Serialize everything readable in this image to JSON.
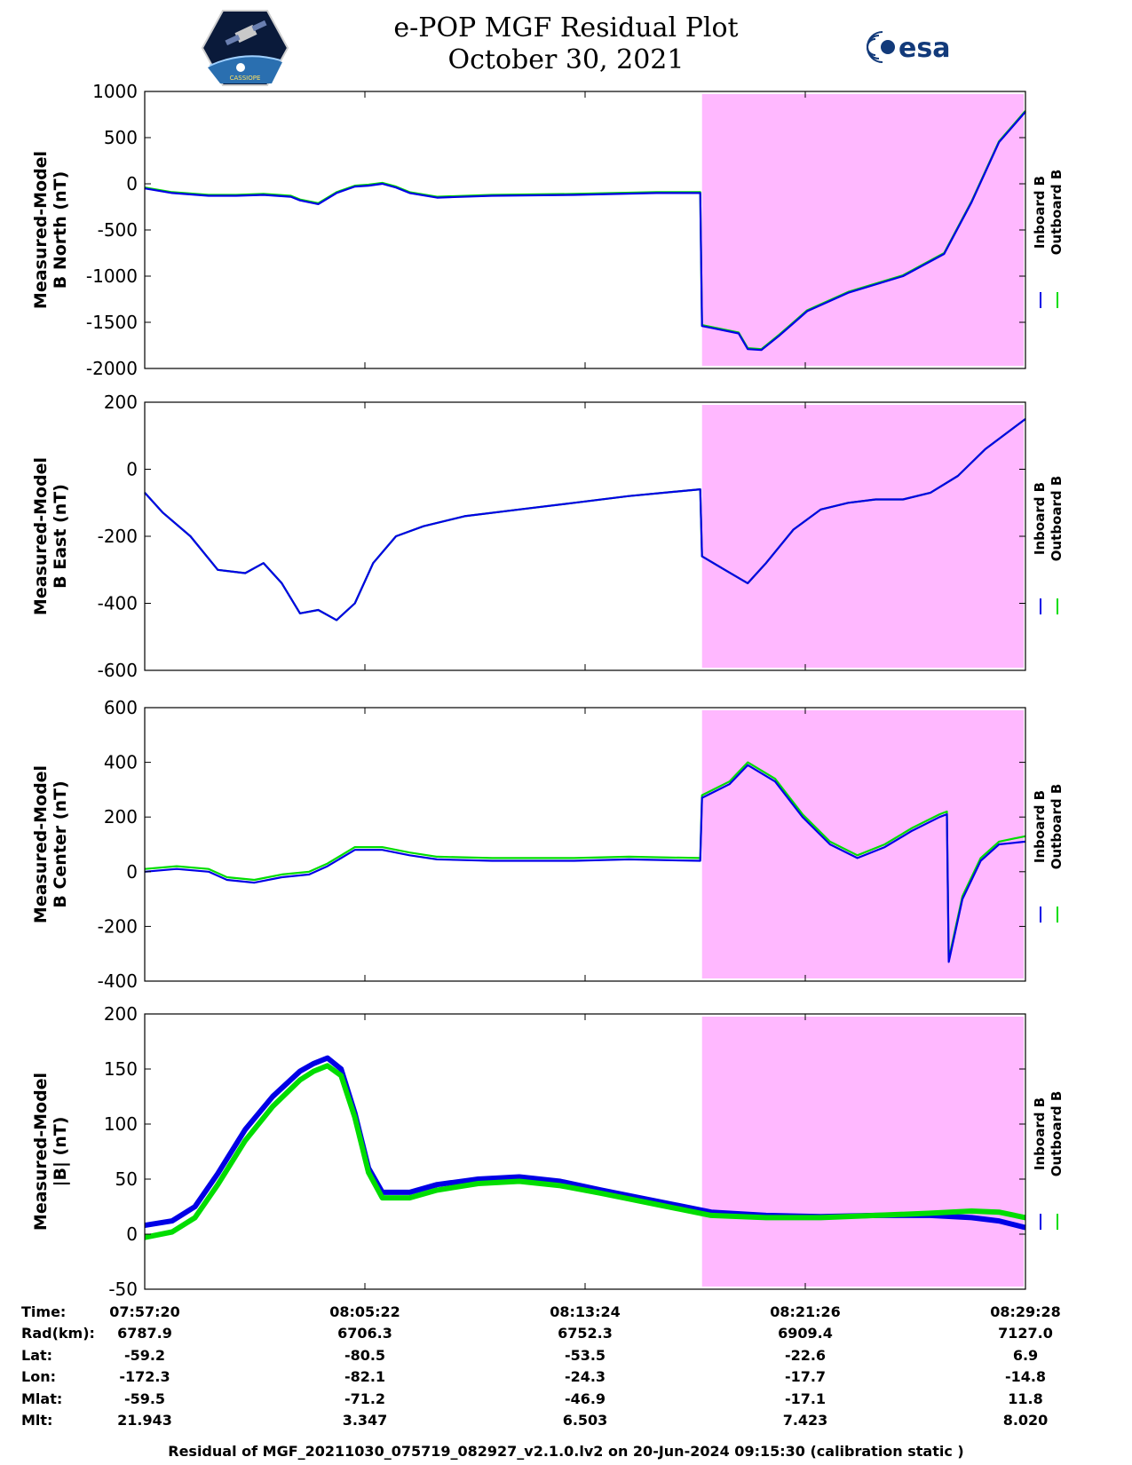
{
  "header": {
    "title_line1": "e-POP MGF Residual Plot",
    "title_line2": "October 30, 2021",
    "left_logo": "cassiope-mission-logo",
    "left_logo_text": "CASSIOPE",
    "right_logo": "esa-logo",
    "right_logo_text": "esa"
  },
  "colors": {
    "inboard": "#0000e6",
    "outboard": "#00dd00",
    "highlight": "#ffb8ff"
  },
  "chart_data": [
    {
      "type": "line",
      "ylabel_line1": "Measured-Model",
      "ylabel_line2": "B North (nT)",
      "ylim": [
        -2000,
        1000
      ],
      "yticks": [
        -2000,
        -1500,
        -1000,
        -500,
        0,
        500,
        1000
      ],
      "xlim": [
        "07:57:20",
        "08:29:28"
      ],
      "highlight_x": [
        "08:17:40",
        "08:29:28"
      ],
      "legend": [
        "Inboard B",
        "Outboard B"
      ],
      "legend_placement": "right",
      "series": [
        {
          "name": "Inboard B",
          "x": [
            "07:57:20",
            "07:58:20",
            "07:59:40",
            "08:00:40",
            "08:01:40",
            "08:02:40",
            "08:03:00",
            "08:03:40",
            "08:04:20",
            "08:05:00",
            "08:05:30",
            "08:06:00",
            "08:06:30",
            "08:07:00",
            "08:08:00",
            "08:10:00",
            "08:13:00",
            "08:16:00",
            "08:17:36",
            "08:17:40",
            "08:18:00",
            "08:19:00",
            "08:19:20",
            "08:19:50",
            "08:20:30",
            "08:21:30",
            "08:23:00",
            "08:25:00",
            "08:26:30",
            "08:27:30",
            "08:28:30",
            "08:29:28"
          ],
          "values": [
            -50,
            -100,
            -130,
            -130,
            -120,
            -140,
            -180,
            -220,
            -100,
            -30,
            -20,
            0,
            -40,
            -100,
            -150,
            -130,
            -120,
            -100,
            -100,
            -1540,
            -1560,
            -1620,
            -1790,
            -1800,
            -1640,
            -1380,
            -1180,
            -1000,
            -760,
            -200,
            450,
            780
          ]
        },
        {
          "name": "Outboard B",
          "x": [
            "07:57:20",
            "07:58:20",
            "07:59:40",
            "08:00:40",
            "08:01:40",
            "08:02:40",
            "08:03:00",
            "08:03:40",
            "08:04:20",
            "08:05:00",
            "08:05:30",
            "08:06:00",
            "08:06:30",
            "08:07:00",
            "08:08:00",
            "08:10:00",
            "08:13:00",
            "08:16:00",
            "08:17:36",
            "08:17:40",
            "08:18:00",
            "08:19:00",
            "08:19:20",
            "08:19:50",
            "08:20:30",
            "08:21:30",
            "08:23:00",
            "08:25:00",
            "08:26:30",
            "08:27:30",
            "08:28:30",
            "08:29:28"
          ],
          "values": [
            -40,
            -90,
            -120,
            -120,
            -110,
            -130,
            -170,
            -210,
            -90,
            -20,
            -10,
            10,
            -30,
            -90,
            -140,
            -120,
            -110,
            -90,
            -90,
            -1530,
            -1550,
            -1610,
            -1780,
            -1790,
            -1630,
            -1370,
            -1170,
            -990,
            -750,
            -190,
            460,
            790
          ]
        }
      ]
    },
    {
      "type": "line",
      "ylabel_line1": "Measured-Model",
      "ylabel_line2": "B East (nT)",
      "ylim": [
        -600,
        200
      ],
      "yticks": [
        -600,
        -400,
        -200,
        0,
        200
      ],
      "xlim": [
        "07:57:20",
        "08:29:28"
      ],
      "highlight_x": [
        "08:17:40",
        "08:29:28"
      ],
      "legend": [
        "Inboard B",
        "Outboard B"
      ],
      "legend_placement": "right",
      "series": [
        {
          "name": "Inboard B",
          "x": [
            "07:57:20",
            "07:58:00",
            "07:59:00",
            "08:00:00",
            "08:01:00",
            "08:01:40",
            "08:02:20",
            "08:03:00",
            "08:03:40",
            "08:04:20",
            "08:05:00",
            "08:05:40",
            "08:06:30",
            "08:07:30",
            "08:09:00",
            "08:11:00",
            "08:13:00",
            "08:15:00",
            "08:17:36",
            "08:17:40",
            "08:18:30",
            "08:19:20",
            "08:20:00",
            "08:21:00",
            "08:22:00",
            "08:23:00",
            "08:24:00",
            "08:25:00",
            "08:26:00",
            "08:27:00",
            "08:28:00",
            "08:29:28"
          ],
          "values": [
            -70,
            -130,
            -200,
            -300,
            -310,
            -280,
            -340,
            -430,
            -420,
            -450,
            -400,
            -280,
            -200,
            -170,
            -140,
            -120,
            -100,
            -80,
            -60,
            -260,
            -300,
            -340,
            -280,
            -180,
            -120,
            -100,
            -90,
            -90,
            -70,
            -20,
            60,
            150
          ]
        },
        {
          "name": "Outboard B",
          "x": [
            "07:57:20",
            "07:58:00",
            "07:59:00",
            "08:00:00",
            "08:01:00",
            "08:01:40",
            "08:02:20",
            "08:03:00",
            "08:03:40",
            "08:04:20",
            "08:05:00",
            "08:05:40",
            "08:06:30",
            "08:07:30",
            "08:09:00",
            "08:11:00",
            "08:13:00",
            "08:15:00",
            "08:17:36",
            "08:17:40",
            "08:18:30",
            "08:19:20",
            "08:20:00",
            "08:21:00",
            "08:22:00",
            "08:23:00",
            "08:24:00",
            "08:25:00",
            "08:26:00",
            "08:27:00",
            "08:28:00",
            "08:29:28"
          ],
          "values": [
            -70,
            -130,
            -200,
            -300,
            -310,
            -280,
            -340,
            -430,
            -420,
            -450,
            -400,
            -280,
            -200,
            -170,
            -140,
            -120,
            -100,
            -80,
            -60,
            -260,
            -300,
            -340,
            -280,
            -180,
            -120,
            -100,
            -90,
            -90,
            -70,
            -20,
            60,
            150
          ]
        }
      ]
    },
    {
      "type": "line",
      "ylabel_line1": "Measured-Model",
      "ylabel_line2": "B Center (nT)",
      "ylim": [
        -400,
        600
      ],
      "yticks": [
        -400,
        -200,
        0,
        200,
        400,
        600
      ],
      "xlim": [
        "07:57:20",
        "08:29:28"
      ],
      "highlight_x": [
        "08:17:40",
        "08:29:28"
      ],
      "legend": [
        "Inboard B",
        "Outboard B"
      ],
      "legend_placement": "right",
      "series": [
        {
          "name": "Inboard B",
          "x": [
            "07:57:20",
            "07:58:30",
            "07:59:40",
            "08:00:20",
            "08:01:20",
            "08:02:20",
            "08:03:20",
            "08:04:00",
            "08:05:00",
            "08:06:00",
            "08:07:00",
            "08:08:00",
            "08:10:00",
            "08:13:00",
            "08:15:00",
            "08:17:36",
            "08:17:40",
            "08:18:40",
            "08:19:20",
            "08:20:20",
            "08:21:20",
            "08:22:20",
            "08:23:20",
            "08:24:20",
            "08:25:20",
            "08:26:20",
            "08:26:36",
            "08:26:40",
            "08:27:10",
            "08:27:50",
            "08:28:30",
            "08:29:28"
          ],
          "values": [
            0,
            10,
            0,
            -30,
            -40,
            -20,
            -10,
            20,
            80,
            80,
            60,
            45,
            40,
            40,
            45,
            40,
            270,
            320,
            390,
            330,
            200,
            100,
            50,
            90,
            150,
            200,
            210,
            -330,
            -100,
            40,
            100,
            110
          ]
        },
        {
          "name": "Outboard B",
          "x": [
            "07:57:20",
            "07:58:30",
            "07:59:40",
            "08:00:20",
            "08:01:20",
            "08:02:20",
            "08:03:20",
            "08:04:00",
            "08:05:00",
            "08:06:00",
            "08:07:00",
            "08:08:00",
            "08:10:00",
            "08:13:00",
            "08:15:00",
            "08:17:36",
            "08:17:40",
            "08:18:40",
            "08:19:20",
            "08:20:20",
            "08:21:20",
            "08:22:20",
            "08:23:20",
            "08:24:20",
            "08:25:20",
            "08:26:20",
            "08:26:36",
            "08:26:40",
            "08:27:10",
            "08:27:50",
            "08:28:30",
            "08:29:28"
          ],
          "values": [
            10,
            20,
            10,
            -20,
            -30,
            -10,
            0,
            30,
            90,
            90,
            70,
            55,
            50,
            50,
            55,
            50,
            280,
            330,
            400,
            340,
            210,
            110,
            60,
            100,
            160,
            210,
            220,
            -320,
            -90,
            50,
            110,
            130
          ]
        }
      ]
    },
    {
      "type": "line",
      "ylabel_line1": "Measured-Model",
      "ylabel_line2": "|B| (nT)",
      "ylim": [
        -50,
        200
      ],
      "yticks": [
        -50,
        0,
        50,
        100,
        150,
        200
      ],
      "xlim": [
        "07:57:20",
        "08:29:28"
      ],
      "highlight_x": [
        "08:17:40",
        "08:29:28"
      ],
      "legend": [
        "Inboard B",
        "Outboard B"
      ],
      "legend_placement": "right",
      "series": [
        {
          "name": "Inboard B",
          "x": [
            "07:57:20",
            "07:58:20",
            "07:59:10",
            "08:00:00",
            "08:01:00",
            "08:02:00",
            "08:03:00",
            "08:03:30",
            "08:04:00",
            "08:04:30",
            "08:05:00",
            "08:05:30",
            "08:06:00",
            "08:07:00",
            "08:08:00",
            "08:09:30",
            "08:11:00",
            "08:12:30",
            "08:14:00",
            "08:16:00",
            "08:18:00",
            "08:20:00",
            "08:22:00",
            "08:24:00",
            "08:26:00",
            "08:27:30",
            "08:28:30",
            "08:29:28"
          ],
          "values": [
            8,
            12,
            25,
            55,
            95,
            125,
            148,
            155,
            160,
            150,
            110,
            60,
            38,
            38,
            45,
            50,
            52,
            48,
            40,
            30,
            20,
            17,
            16,
            17,
            17,
            15,
            12,
            6
          ]
        },
        {
          "name": "Outboard B",
          "x": [
            "07:57:20",
            "07:58:20",
            "07:59:10",
            "08:00:00",
            "08:01:00",
            "08:02:00",
            "08:03:00",
            "08:03:30",
            "08:04:00",
            "08:04:30",
            "08:05:00",
            "08:05:30",
            "08:06:00",
            "08:07:00",
            "08:08:00",
            "08:09:30",
            "08:11:00",
            "08:12:30",
            "08:14:00",
            "08:16:00",
            "08:18:00",
            "08:20:00",
            "08:22:00",
            "08:24:00",
            "08:26:00",
            "08:27:30",
            "08:28:30",
            "08:29:28"
          ],
          "values": [
            -3,
            2,
            15,
            45,
            85,
            116,
            140,
            148,
            153,
            144,
            106,
            56,
            33,
            33,
            40,
            46,
            48,
            44,
            37,
            27,
            17,
            15,
            15,
            17,
            19,
            21,
            20,
            15
          ]
        }
      ]
    }
  ],
  "x_ticks": [
    "07:57:20",
    "08:05:22",
    "08:13:24",
    "08:21:26",
    "08:29:28"
  ],
  "ephemeris": {
    "rows": [
      {
        "label": "Time:",
        "values": [
          "07:57:20",
          "08:05:22",
          "08:13:24",
          "08:21:26",
          "08:29:28"
        ]
      },
      {
        "label": "Rad(km):",
        "values": [
          "6787.9",
          "6706.3",
          "6752.3",
          "6909.4",
          "7127.0"
        ]
      },
      {
        "label": "Lat:",
        "values": [
          "-59.2",
          "-80.5",
          "-53.5",
          "-22.6",
          "6.9"
        ]
      },
      {
        "label": "Lon:",
        "values": [
          "-172.3",
          "-82.1",
          "-24.3",
          "-17.7",
          "-14.8"
        ]
      },
      {
        "label": "Mlat:",
        "values": [
          "-59.5",
          "-71.2",
          "-46.9",
          "-17.1",
          "11.8"
        ]
      },
      {
        "label": "Mlt:",
        "values": [
          "21.943",
          "3.347",
          "6.503",
          "7.423",
          "8.020"
        ]
      }
    ]
  },
  "footer": {
    "text": "Residual of MGF_20211030_075719_082927_v2.1.0.lv2 on 20-Jun-2024 09:15:30 (calibration static )"
  }
}
